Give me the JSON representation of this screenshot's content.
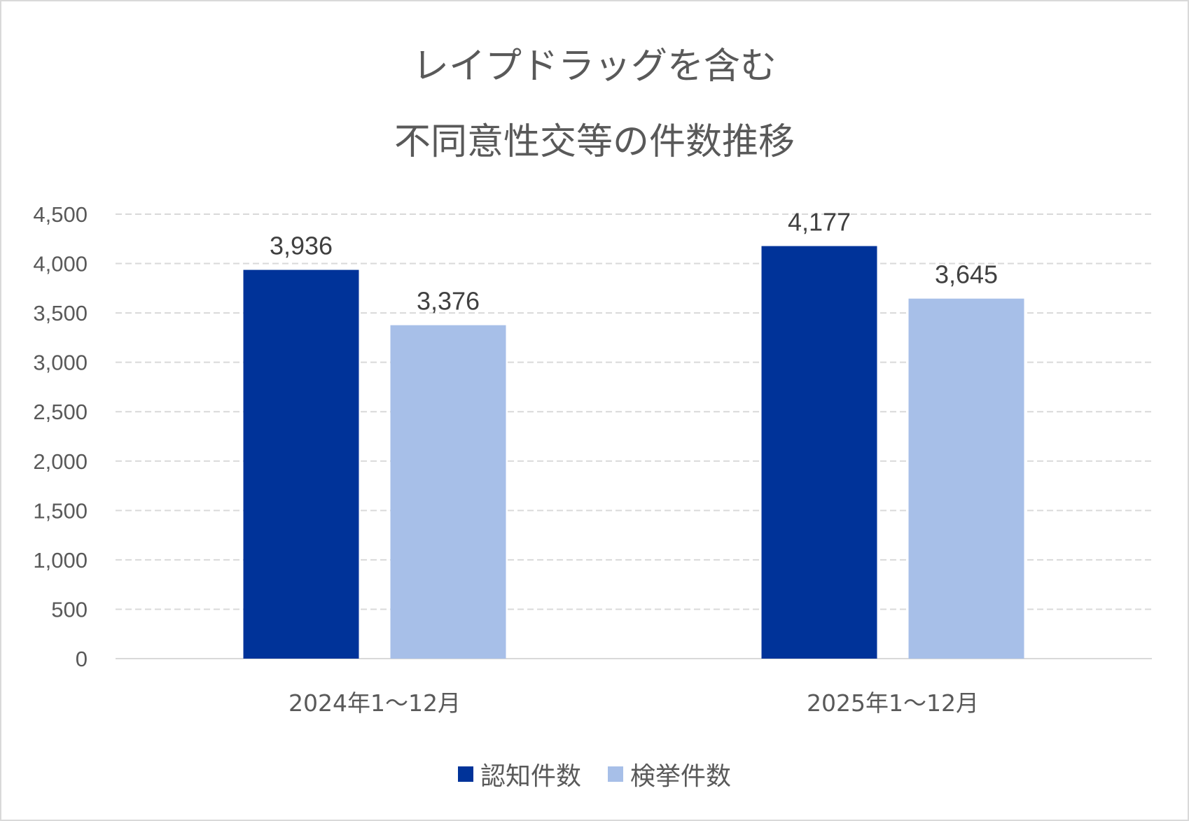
{
  "chart_data": {
    "type": "bar",
    "title": [
      "レイプドラッグを含む",
      "不同意性交等の件数推移"
    ],
    "categories": [
      "2024年1〜12月",
      "2025年1〜12月"
    ],
    "series": [
      {
        "name": "認知件数",
        "values": [
          3936,
          4177
        ],
        "labels": [
          "3,936",
          "4,177"
        ],
        "color": "#003399"
      },
      {
        "name": "検挙件数",
        "values": [
          3376,
          3645
        ],
        "labels": [
          "3,376",
          "3,645"
        ],
        "color": "#a7bfe8"
      }
    ],
    "ylim": [
      0,
      4500
    ],
    "yticks": [
      0,
      500,
      1000,
      1500,
      2000,
      2500,
      3000,
      3500,
      4000,
      4500
    ],
    "ytick_labels": [
      "0",
      "500",
      "1,000",
      "1,500",
      "2,000",
      "2,500",
      "3,000",
      "3,500",
      "4,000",
      "4,500"
    ],
    "grid": "horizontal dashed",
    "legend": "bottom",
    "xlabel": "",
    "ylabel": ""
  }
}
